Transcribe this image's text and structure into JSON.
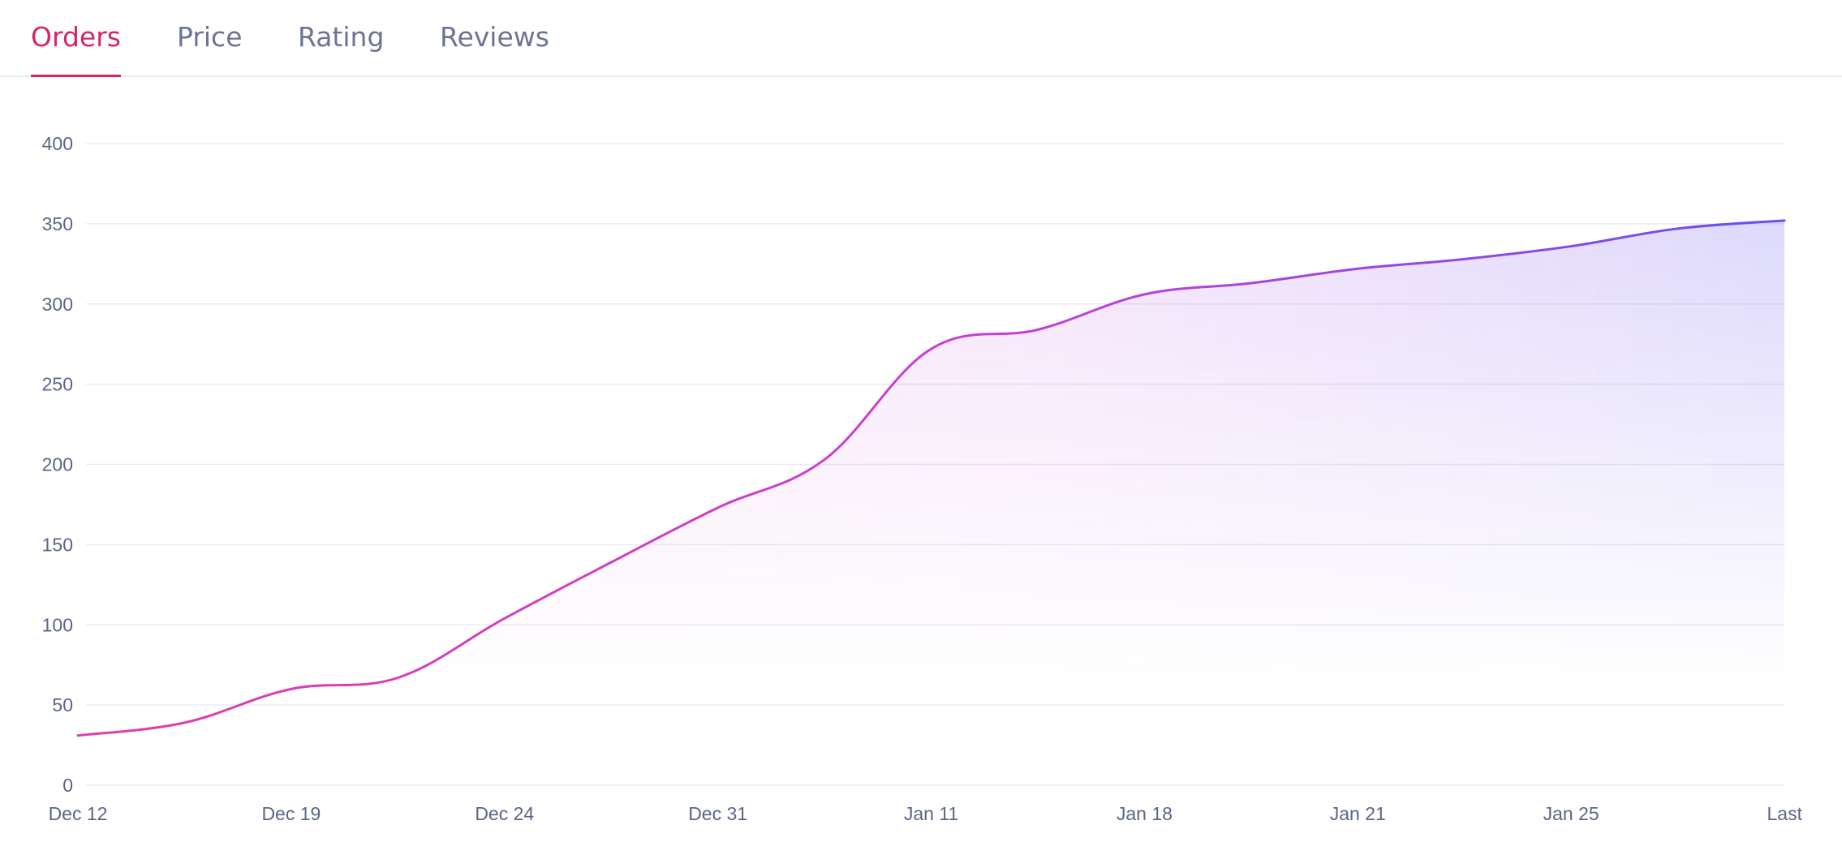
{
  "tabs": [
    {
      "label": "Orders",
      "active": true
    },
    {
      "label": "Price",
      "active": false
    },
    {
      "label": "Rating",
      "active": false
    },
    {
      "label": "Reviews",
      "active": false
    }
  ],
  "colors": {
    "active_tab": "#d6246a",
    "inactive_tab": "#6b7494",
    "line_start": "#e03ea8",
    "line_end": "#6a4ff0",
    "grid": "#e8ebf6",
    "tick_text": "#5b6685"
  },
  "chart_data": {
    "type": "area",
    "title": "",
    "xlabel": "",
    "ylabel": "",
    "ylim": [
      0,
      400
    ],
    "yticks": [
      0,
      50,
      100,
      150,
      200,
      250,
      300,
      350,
      400
    ],
    "x_tick_labels": [
      "Dec 12",
      "Dec 19",
      "Dec 24",
      "Dec 31",
      "Jan 11",
      "Jan 18",
      "Jan 21",
      "Jan 25",
      "Last"
    ],
    "grid": true,
    "legend": "none",
    "series": [
      {
        "values": [
          31,
          39,
          60,
          67,
          104,
          139,
          173,
          203,
          272,
          284,
          306,
          313,
          322,
          328,
          336,
          347,
          352
        ]
      }
    ]
  }
}
